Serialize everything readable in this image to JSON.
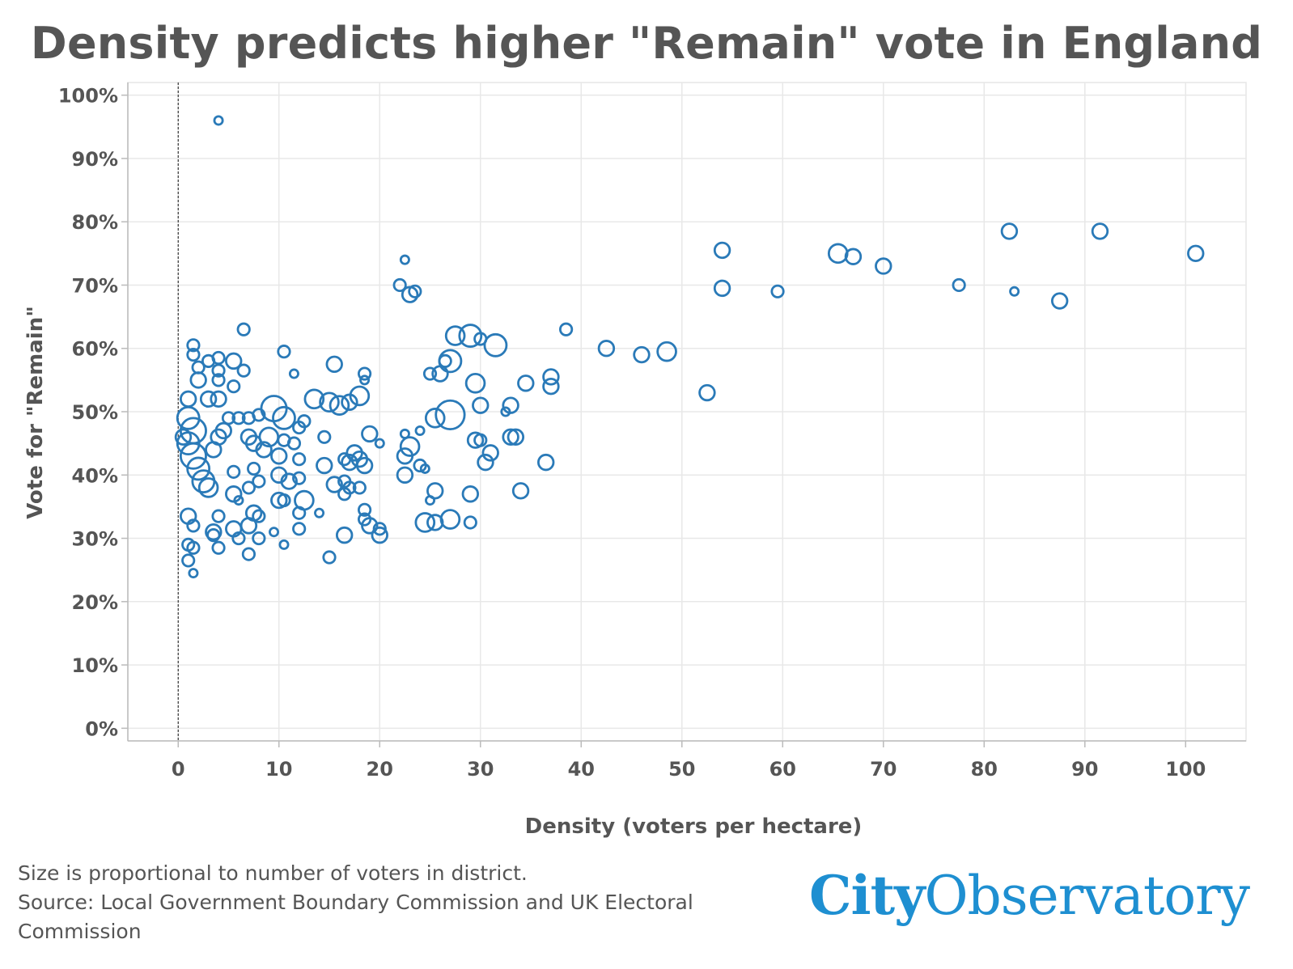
{
  "chart_data": {
    "type": "scatter",
    "title": "Density predicts higher \"Remain\" vote in England",
    "xlabel": "Density (voters per hectare)",
    "ylabel": "Vote for \"Remain\"",
    "xlim": [
      -5,
      106
    ],
    "ylim": [
      -2,
      102
    ],
    "x_ticks": [
      "0",
      "10",
      "20",
      "30",
      "40",
      "50",
      "60",
      "70",
      "80",
      "90",
      "100"
    ],
    "y_ticks": [
      "0%",
      "10%",
      "20%",
      "30%",
      "40%",
      "50%",
      "60%",
      "70%",
      "80%",
      "90%",
      "100%"
    ],
    "grid": true,
    "reference_line_x": 0,
    "marker_color": "#2a7ab8",
    "series": [
      {
        "points": [
          {
            "x": 4,
            "y": 96,
            "r": 1
          },
          {
            "x": 1.5,
            "y": 60.5,
            "r": 2
          },
          {
            "x": 1.5,
            "y": 59,
            "r": 2
          },
          {
            "x": 3,
            "y": 58,
            "r": 2
          },
          {
            "x": 4,
            "y": 58.5,
            "r": 2
          },
          {
            "x": 5.5,
            "y": 58,
            "r": 3
          },
          {
            "x": 6.5,
            "y": 63,
            "r": 2
          },
          {
            "x": 6.5,
            "y": 56.5,
            "r": 2
          },
          {
            "x": 2,
            "y": 57,
            "r": 2
          },
          {
            "x": 4,
            "y": 56.5,
            "r": 2
          },
          {
            "x": 10.5,
            "y": 59.5,
            "r": 2
          },
          {
            "x": 11.5,
            "y": 56,
            "r": 1
          },
          {
            "x": 15.5,
            "y": 57.5,
            "r": 3
          },
          {
            "x": 18.5,
            "y": 56,
            "r": 2
          },
          {
            "x": 18.5,
            "y": 55,
            "r": 1
          },
          {
            "x": 2,
            "y": 55,
            "r": 3
          },
          {
            "x": 4,
            "y": 55,
            "r": 2
          },
          {
            "x": 1,
            "y": 52,
            "r": 3
          },
          {
            "x": 3,
            "y": 52,
            "r": 3
          },
          {
            "x": 4,
            "y": 52,
            "r": 3
          },
          {
            "x": 5.5,
            "y": 54,
            "r": 2
          },
          {
            "x": 13.5,
            "y": 52,
            "r": 4
          },
          {
            "x": 15,
            "y": 51.5,
            "r": 4
          },
          {
            "x": 16,
            "y": 51,
            "r": 4
          },
          {
            "x": 17,
            "y": 51.5,
            "r": 3
          },
          {
            "x": 18,
            "y": 52.5,
            "r": 4
          },
          {
            "x": 9.5,
            "y": 50.5,
            "r": 6
          },
          {
            "x": 10.5,
            "y": 49,
            "r": 5
          },
          {
            "x": 12.5,
            "y": 48.5,
            "r": 2
          },
          {
            "x": 1,
            "y": 49,
            "r": 5
          },
          {
            "x": 1.5,
            "y": 47,
            "r": 6
          },
          {
            "x": 0.5,
            "y": 46,
            "r": 3
          },
          {
            "x": 1,
            "y": 45,
            "r": 5
          },
          {
            "x": 1.5,
            "y": 43,
            "r": 6
          },
          {
            "x": 2,
            "y": 41,
            "r": 5
          },
          {
            "x": 2.5,
            "y": 39,
            "r": 5
          },
          {
            "x": 3,
            "y": 38,
            "r": 4
          },
          {
            "x": 3.5,
            "y": 44,
            "r": 3
          },
          {
            "x": 4,
            "y": 46,
            "r": 3
          },
          {
            "x": 4.5,
            "y": 47,
            "r": 3
          },
          {
            "x": 5,
            "y": 49,
            "r": 2
          },
          {
            "x": 6,
            "y": 49,
            "r": 2
          },
          {
            "x": 7,
            "y": 49,
            "r": 2
          },
          {
            "x": 8,
            "y": 49.5,
            "r": 2
          },
          {
            "x": 7,
            "y": 46,
            "r": 3
          },
          {
            "x": 7.5,
            "y": 45,
            "r": 3
          },
          {
            "x": 8.5,
            "y": 44,
            "r": 3
          },
          {
            "x": 9,
            "y": 46,
            "r": 4
          },
          {
            "x": 10.5,
            "y": 45.5,
            "r": 2
          },
          {
            "x": 11.5,
            "y": 45,
            "r": 2
          },
          {
            "x": 12,
            "y": 47.5,
            "r": 2
          },
          {
            "x": 14.5,
            "y": 46,
            "r": 2
          },
          {
            "x": 10,
            "y": 43,
            "r": 3
          },
          {
            "x": 12,
            "y": 42.5,
            "r": 2
          },
          {
            "x": 14.5,
            "y": 41.5,
            "r": 3
          },
          {
            "x": 16.5,
            "y": 42.5,
            "r": 2
          },
          {
            "x": 17,
            "y": 42,
            "r": 3
          },
          {
            "x": 17.5,
            "y": 43.5,
            "r": 3
          },
          {
            "x": 18,
            "y": 42.5,
            "r": 3
          },
          {
            "x": 18.5,
            "y": 41.5,
            "r": 3
          },
          {
            "x": 19,
            "y": 46.5,
            "r": 3
          },
          {
            "x": 20,
            "y": 45,
            "r": 1
          },
          {
            "x": 7.5,
            "y": 41,
            "r": 2
          },
          {
            "x": 8,
            "y": 39,
            "r": 2
          },
          {
            "x": 10,
            "y": 40,
            "r": 3
          },
          {
            "x": 11,
            "y": 39,
            "r": 3
          },
          {
            "x": 12,
            "y": 39.5,
            "r": 2
          },
          {
            "x": 15.5,
            "y": 38.5,
            "r": 3
          },
          {
            "x": 16.5,
            "y": 39,
            "r": 2
          },
          {
            "x": 17,
            "y": 38,
            "r": 2
          },
          {
            "x": 18,
            "y": 38,
            "r": 2
          },
          {
            "x": 16.5,
            "y": 37,
            "r": 2
          },
          {
            "x": 5.5,
            "y": 37,
            "r": 3
          },
          {
            "x": 7,
            "y": 38,
            "r": 2
          },
          {
            "x": 10,
            "y": 36,
            "r": 3
          },
          {
            "x": 10.5,
            "y": 36,
            "r": 2
          },
          {
            "x": 12.5,
            "y": 36,
            "r": 4
          },
          {
            "x": 12,
            "y": 34,
            "r": 2
          },
          {
            "x": 14,
            "y": 34,
            "r": 1
          },
          {
            "x": 18.5,
            "y": 34.5,
            "r": 2
          },
          {
            "x": 5.5,
            "y": 40.5,
            "r": 2
          },
          {
            "x": 6,
            "y": 36,
            "r": 1
          },
          {
            "x": 4,
            "y": 33.5,
            "r": 2
          },
          {
            "x": 7.5,
            "y": 34,
            "r": 3
          },
          {
            "x": 8,
            "y": 33.5,
            "r": 2
          },
          {
            "x": 1,
            "y": 33.5,
            "r": 3
          },
          {
            "x": 1.5,
            "y": 32,
            "r": 2
          },
          {
            "x": 3.5,
            "y": 30.5,
            "r": 2
          },
          {
            "x": 3.5,
            "y": 31,
            "r": 3
          },
          {
            "x": 5.5,
            "y": 31.5,
            "r": 3
          },
          {
            "x": 6,
            "y": 30,
            "r": 2
          },
          {
            "x": 7,
            "y": 32,
            "r": 3
          },
          {
            "x": 8,
            "y": 30,
            "r": 2
          },
          {
            "x": 9.5,
            "y": 31,
            "r": 1
          },
          {
            "x": 12,
            "y": 31.5,
            "r": 2
          },
          {
            "x": 16.5,
            "y": 30.5,
            "r": 3
          },
          {
            "x": 18.5,
            "y": 33,
            "r": 2
          },
          {
            "x": 19,
            "y": 32,
            "r": 3
          },
          {
            "x": 20,
            "y": 31.5,
            "r": 2
          },
          {
            "x": 20,
            "y": 30.5,
            "r": 3
          },
          {
            "x": 1,
            "y": 29,
            "r": 2
          },
          {
            "x": 1.5,
            "y": 28.5,
            "r": 2
          },
          {
            "x": 4,
            "y": 28.5,
            "r": 2
          },
          {
            "x": 7,
            "y": 27.5,
            "r": 2
          },
          {
            "x": 10.5,
            "y": 29,
            "r": 1
          },
          {
            "x": 15,
            "y": 27,
            "r": 2
          },
          {
            "x": 1,
            "y": 26.5,
            "r": 2
          },
          {
            "x": 1.5,
            "y": 24.5,
            "r": 1
          },
          {
            "x": 22,
            "y": 70,
            "r": 2
          },
          {
            "x": 22.5,
            "y": 74,
            "r": 1
          },
          {
            "x": 23.5,
            "y": 69,
            "r": 2
          },
          {
            "x": 23,
            "y": 68.5,
            "r": 3
          },
          {
            "x": 27.5,
            "y": 62,
            "r": 4
          },
          {
            "x": 29,
            "y": 62,
            "r": 5
          },
          {
            "x": 30,
            "y": 61.5,
            "r": 2
          },
          {
            "x": 31.5,
            "y": 60.5,
            "r": 5
          },
          {
            "x": 26.5,
            "y": 58,
            "r": 2
          },
          {
            "x": 27,
            "y": 58,
            "r": 5
          },
          {
            "x": 25,
            "y": 56,
            "r": 2
          },
          {
            "x": 26,
            "y": 56,
            "r": 3
          },
          {
            "x": 29.5,
            "y": 54.5,
            "r": 4
          },
          {
            "x": 27,
            "y": 49.5,
            "r": 7
          },
          {
            "x": 25.5,
            "y": 49,
            "r": 4
          },
          {
            "x": 30,
            "y": 51,
            "r": 3
          },
          {
            "x": 32.5,
            "y": 50,
            "r": 1
          },
          {
            "x": 33,
            "y": 51,
            "r": 3
          },
          {
            "x": 22.5,
            "y": 46.5,
            "r": 1
          },
          {
            "x": 23,
            "y": 44.5,
            "r": 4
          },
          {
            "x": 22.5,
            "y": 43,
            "r": 3
          },
          {
            "x": 24,
            "y": 47,
            "r": 1
          },
          {
            "x": 29.5,
            "y": 45.5,
            "r": 3
          },
          {
            "x": 30,
            "y": 45.5,
            "r": 2
          },
          {
            "x": 33,
            "y": 46,
            "r": 3
          },
          {
            "x": 33.5,
            "y": 46,
            "r": 3
          },
          {
            "x": 31,
            "y": 43.5,
            "r": 3
          },
          {
            "x": 30.5,
            "y": 42,
            "r": 3
          },
          {
            "x": 36.5,
            "y": 42,
            "r": 3
          },
          {
            "x": 24,
            "y": 41.5,
            "r": 2
          },
          {
            "x": 24.5,
            "y": 41,
            "r": 1
          },
          {
            "x": 22.5,
            "y": 40,
            "r": 3
          },
          {
            "x": 25.5,
            "y": 37.5,
            "r": 3
          },
          {
            "x": 25,
            "y": 36,
            "r": 1
          },
          {
            "x": 29,
            "y": 37,
            "r": 3
          },
          {
            "x": 34,
            "y": 37.5,
            "r": 3
          },
          {
            "x": 24.5,
            "y": 32.5,
            "r": 4
          },
          {
            "x": 25.5,
            "y": 32.5,
            "r": 3
          },
          {
            "x": 27,
            "y": 33,
            "r": 4
          },
          {
            "x": 29,
            "y": 32.5,
            "r": 2
          },
          {
            "x": 38.5,
            "y": 63,
            "r": 2
          },
          {
            "x": 42.5,
            "y": 60,
            "r": 3
          },
          {
            "x": 46,
            "y": 59,
            "r": 3
          },
          {
            "x": 48.5,
            "y": 59.5,
            "r": 4
          },
          {
            "x": 34.5,
            "y": 54.5,
            "r": 3
          },
          {
            "x": 37,
            "y": 55.5,
            "r": 3
          },
          {
            "x": 37,
            "y": 54,
            "r": 3
          },
          {
            "x": 52.5,
            "y": 53,
            "r": 3
          },
          {
            "x": 54,
            "y": 75.5,
            "r": 3
          },
          {
            "x": 54,
            "y": 69.5,
            "r": 3
          },
          {
            "x": 59.5,
            "y": 69,
            "r": 2
          },
          {
            "x": 65.5,
            "y": 75,
            "r": 4
          },
          {
            "x": 67,
            "y": 74.5,
            "r": 3
          },
          {
            "x": 70,
            "y": 73,
            "r": 3
          },
          {
            "x": 77.5,
            "y": 70,
            "r": 2
          },
          {
            "x": 82.5,
            "y": 78.5,
            "r": 3
          },
          {
            "x": 83,
            "y": 69,
            "r": 1
          },
          {
            "x": 87.5,
            "y": 67.5,
            "r": 3
          },
          {
            "x": 91.5,
            "y": 78.5,
            "r": 3
          },
          {
            "x": 101,
            "y": 75,
            "r": 3
          }
        ]
      }
    ]
  },
  "footer": {
    "size_note": "Size is proportional to number of voters in district.",
    "source_note": "Source: Local Government Boundary Commission and UK Electoral\nCommission"
  },
  "logo": {
    "part1": "City",
    "part2": "Observatory",
    "color": "#1e8fd1"
  }
}
